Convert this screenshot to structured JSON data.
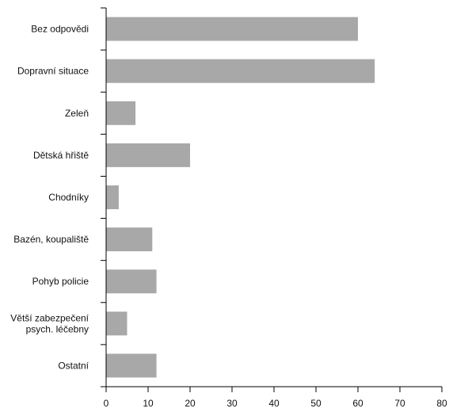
{
  "chart_data": {
    "type": "bar",
    "orientation": "horizontal",
    "title": "",
    "xlabel": "",
    "ylabel": "",
    "categories": [
      [
        "Bez odpovědi"
      ],
      [
        "Dopravní situace"
      ],
      [
        "Zeleň"
      ],
      [
        "Dětská hřiště"
      ],
      [
        "Chodníky"
      ],
      [
        "Bazén, koupaliště"
      ],
      [
        "Pohyb policie"
      ],
      [
        "Větší zabezpečení",
        "psych. léčebny"
      ],
      [
        "Ostatní"
      ]
    ],
    "values": [
      60,
      64,
      7,
      20,
      3,
      11,
      12,
      5,
      12
    ],
    "xlim": [
      0,
      80
    ],
    "xticks": [
      "0",
      "10",
      "20",
      "30",
      "40",
      "50",
      "60",
      "70",
      "80"
    ],
    "grid": false,
    "legend": "none",
    "colors": {
      "bar": "#a8a8a8",
      "axis": "#000000",
      "text": "#111111"
    }
  }
}
